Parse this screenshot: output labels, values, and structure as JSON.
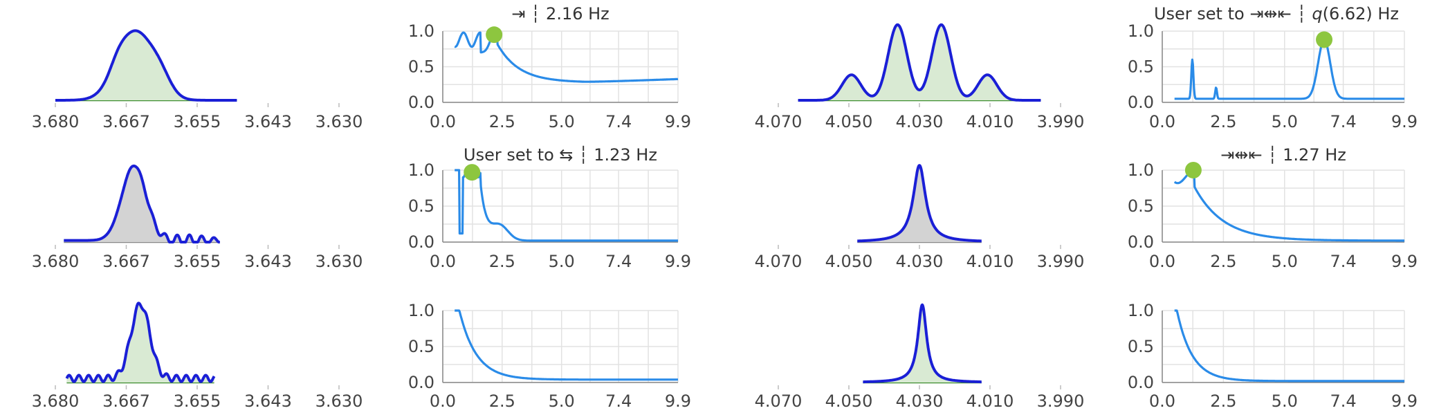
{
  "chart_data": [
    {
      "type": "area",
      "shape": "single",
      "x_ticks": [
        "3.680",
        "3.667",
        "3.655",
        "3.643",
        "3.630"
      ],
      "xlim": [
        3.68,
        3.63
      ],
      "fill": "#d9ead3",
      "line": "#1a1fd6",
      "baseline": "#3e8e2f"
    },
    {
      "type": "line",
      "title": "⇥ ┆ 2.16 Hz",
      "x_ticks": [
        "0.0",
        "2.5",
        "5.0",
        "7.4",
        "9.9"
      ],
      "y_ticks": [
        "0.0",
        "0.5",
        "1.0"
      ],
      "xlim": [
        0,
        9.9
      ],
      "ylim": [
        0,
        1
      ],
      "marker": {
        "x": 2.16,
        "y": 0.95
      },
      "shape": "a",
      "line": "#2a8be8",
      "marker_color": "#8dc63f"
    },
    {
      "type": "area",
      "shape": "quad",
      "x_ticks": [
        "4.070",
        "4.050",
        "4.030",
        "4.010",
        "3.990"
      ],
      "xlim": [
        4.07,
        3.99
      ],
      "fill": "#d9ead3",
      "line": "#1a1fd6",
      "baseline": "#3e8e2f"
    },
    {
      "type": "line",
      "title_prefix": "User set to ⇥⇹⇤ ┆ ",
      "title_q": "q",
      "title_suffix": "(6.62) Hz",
      "x_ticks": [
        "0.0",
        "2.5",
        "5.0",
        "7.4",
        "9.9"
      ],
      "y_ticks": [
        "0.0",
        "0.5",
        "1.0"
      ],
      "xlim": [
        0,
        9.9
      ],
      "ylim": [
        0,
        1
      ],
      "marker": {
        "x": 6.62,
        "y": 0.88
      },
      "shape": "b",
      "line": "#2a8be8",
      "marker_color": "#8dc63f"
    },
    {
      "type": "area",
      "shape": "ripple",
      "x_ticks": [
        "3.680",
        "3.667",
        "3.655",
        "3.643",
        "3.630"
      ],
      "xlim": [
        3.68,
        3.63
      ],
      "fill": "#d3d3d3",
      "line": "#1a1fd6",
      "baseline": "#888888"
    },
    {
      "type": "line",
      "title": "User set to ⇆ ┆ 1.23 Hz",
      "x_ticks": [
        "0.0",
        "2.5",
        "5.0",
        "7.4",
        "9.9"
      ],
      "y_ticks": [
        "0.0",
        "0.5",
        "1.0"
      ],
      "xlim": [
        0,
        9.9
      ],
      "ylim": [
        0,
        1
      ],
      "marker": {
        "x": 1.23,
        "y": 0.97
      },
      "shape": "c",
      "line": "#2a8be8",
      "marker_color": "#8dc63f"
    },
    {
      "type": "area",
      "shape": "lorentz",
      "x_ticks": [
        "4.070",
        "4.050",
        "4.030",
        "4.010",
        "3.990"
      ],
      "xlim": [
        4.07,
        3.99
      ],
      "fill": "#d3d3d3",
      "line": "#1a1fd6",
      "baseline": "#888888"
    },
    {
      "type": "line",
      "title": "⇥⇹⇤ ┆ 1.27 Hz",
      "x_ticks": [
        "0.0",
        "2.5",
        "5.0",
        "7.4",
        "9.9"
      ],
      "y_ticks": [
        "0.0",
        "0.5",
        "1.0"
      ],
      "xlim": [
        0,
        9.9
      ],
      "ylim": [
        0,
        1
      ],
      "marker": {
        "x": 1.27,
        "y": 1.0
      },
      "shape": "d",
      "line": "#2a8be8",
      "marker_color": "#8dc63f"
    },
    {
      "type": "area",
      "shape": "noisy",
      "x_ticks": [
        "3.680",
        "3.667",
        "3.655",
        "3.643",
        "3.630"
      ],
      "xlim": [
        3.68,
        3.63
      ],
      "fill": "#d9ead3",
      "line": "#1a1fd6",
      "baseline": "#3e8e2f"
    },
    {
      "type": "line",
      "title": "",
      "x_ticks": [
        "0.0",
        "2.5",
        "5.0",
        "7.4",
        "9.9"
      ],
      "y_ticks": [
        "0.0",
        "0.5",
        "1.0"
      ],
      "xlim": [
        0,
        9.9
      ],
      "ylim": [
        0,
        1
      ],
      "marker": null,
      "shape": "e",
      "line": "#2a8be8",
      "marker_color": "#8dc63f"
    },
    {
      "type": "area",
      "shape": "lorentz2",
      "x_ticks": [
        "4.070",
        "4.050",
        "4.030",
        "4.010",
        "3.990"
      ],
      "xlim": [
        4.07,
        3.99
      ],
      "fill": "#d9ead3",
      "line": "#1a1fd6",
      "baseline": "#3e8e2f"
    },
    {
      "type": "line",
      "title": "",
      "x_ticks": [
        "0.0",
        "2.5",
        "5.0",
        "7.4",
        "9.9"
      ],
      "y_ticks": [
        "0.0",
        "0.5",
        "1.0"
      ],
      "xlim": [
        0,
        9.9
      ],
      "ylim": [
        0,
        1
      ],
      "marker": null,
      "shape": "f",
      "line": "#2a8be8",
      "marker_color": "#8dc63f"
    }
  ]
}
